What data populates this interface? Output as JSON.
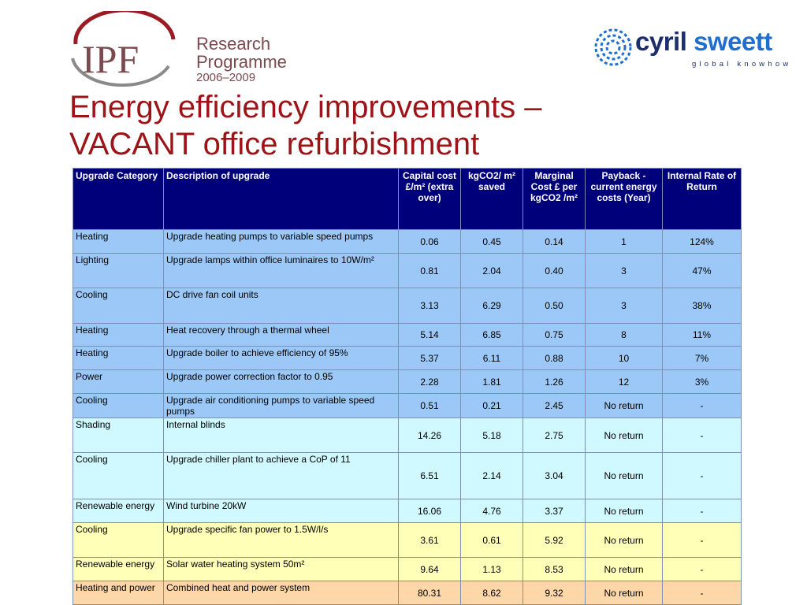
{
  "logo_ipf": {
    "text": "IPF",
    "research": "Research",
    "programme": "Programme",
    "years": "2006–2009"
  },
  "logo_cs": {
    "cyril": "cyril",
    "sweett": "sweett",
    "tagline": "global knowhow"
  },
  "title_line1": "Energy efficiency improvements –",
  "title_line2": "VACANT office refurbishment",
  "colors": {
    "title": "#9c1318",
    "header_bg": "#00007a",
    "row_blue": "#9cc8f8",
    "row_cyan": "#cff9ff",
    "row_yellow": "#ffffb8",
    "row_orange": "#fdd7a8"
  },
  "table": {
    "headers": [
      "Upgrade Category",
      "Description of upgrade",
      "Capital cost £/m² (extra over)",
      "kgCO2/ m² saved",
      "Marginal Cost £ per kgCO2 /m²",
      "Payback - current energy costs (Year)",
      "Internal Rate of Return"
    ],
    "rows": [
      {
        "category": "Heating",
        "description": "Upgrade heating pumps to variable speed pumps",
        "capital": "0.06",
        "co2": "0.45",
        "marginal": "0.14",
        "payback": "1",
        "irr": "124%",
        "color": "blue"
      },
      {
        "category": "Lighting",
        "description": "Upgrade lamps within office luminaires to 10W/m²",
        "capital": "0.81",
        "co2": "2.04",
        "marginal": "0.40",
        "payback": "3",
        "irr": "47%",
        "color": "blue"
      },
      {
        "category": "Cooling",
        "description": "DC drive fan coil units",
        "capital": "3.13",
        "co2": "6.29",
        "marginal": "0.50",
        "payback": "3",
        "irr": "38%",
        "color": "blue"
      },
      {
        "category": "Heating",
        "description": "Heat recovery through a thermal wheel",
        "capital": "5.14",
        "co2": "6.85",
        "marginal": "0.75",
        "payback": "8",
        "irr": "11%",
        "color": "blue"
      },
      {
        "category": "Heating",
        "description": "Upgrade boiler to achieve efficiency of 95%",
        "capital": "5.37",
        "co2": "6.11",
        "marginal": "0.88",
        "payback": "10",
        "irr": "7%",
        "color": "blue"
      },
      {
        "category": "Power",
        "description": "Upgrade power correction factor to 0.95",
        "capital": "2.28",
        "co2": "1.81",
        "marginal": "1.26",
        "payback": "12",
        "irr": "3%",
        "color": "blue"
      },
      {
        "category": "Cooling",
        "description": "Upgrade air conditioning pumps to variable speed pumps",
        "capital": "0.51",
        "co2": "0.21",
        "marginal": "2.45",
        "payback": "No return",
        "irr": "-",
        "color": "blue"
      },
      {
        "category": "Shading",
        "description": "Internal blinds",
        "capital": "14.26",
        "co2": "5.18",
        "marginal": "2.75",
        "payback": "No return",
        "irr": "-",
        "color": "cyan"
      },
      {
        "category": "Cooling",
        "description": "Upgrade chiller plant to achieve a CoP of 11",
        "capital": "6.51",
        "co2": "2.14",
        "marginal": "3.04",
        "payback": "No return",
        "irr": "-",
        "color": "cyan"
      },
      {
        "category": "Renewable energy",
        "description": "Wind turbine 20kW",
        "capital": "16.06",
        "co2": "4.76",
        "marginal": "3.37",
        "payback": "No return",
        "irr": "-",
        "color": "cyan"
      },
      {
        "category": "Cooling",
        "description": "Upgrade specific fan power to 1.5W/l/s",
        "capital": "3.61",
        "co2": "0.61",
        "marginal": "5.92",
        "payback": "No return",
        "irr": "-",
        "color": "yellow"
      },
      {
        "category": "Renewable energy",
        "description": "Solar water heating system 50m²",
        "capital": "9.64",
        "co2": "1.13",
        "marginal": "8.53",
        "payback": "No return",
        "irr": "-",
        "color": "yellow"
      },
      {
        "category": "Heating and power",
        "description": "Combined heat and power system",
        "capital": "80.31",
        "co2": "8.62",
        "marginal": "9.32",
        "payback": "No return",
        "irr": "-",
        "color": "orange"
      }
    ]
  }
}
